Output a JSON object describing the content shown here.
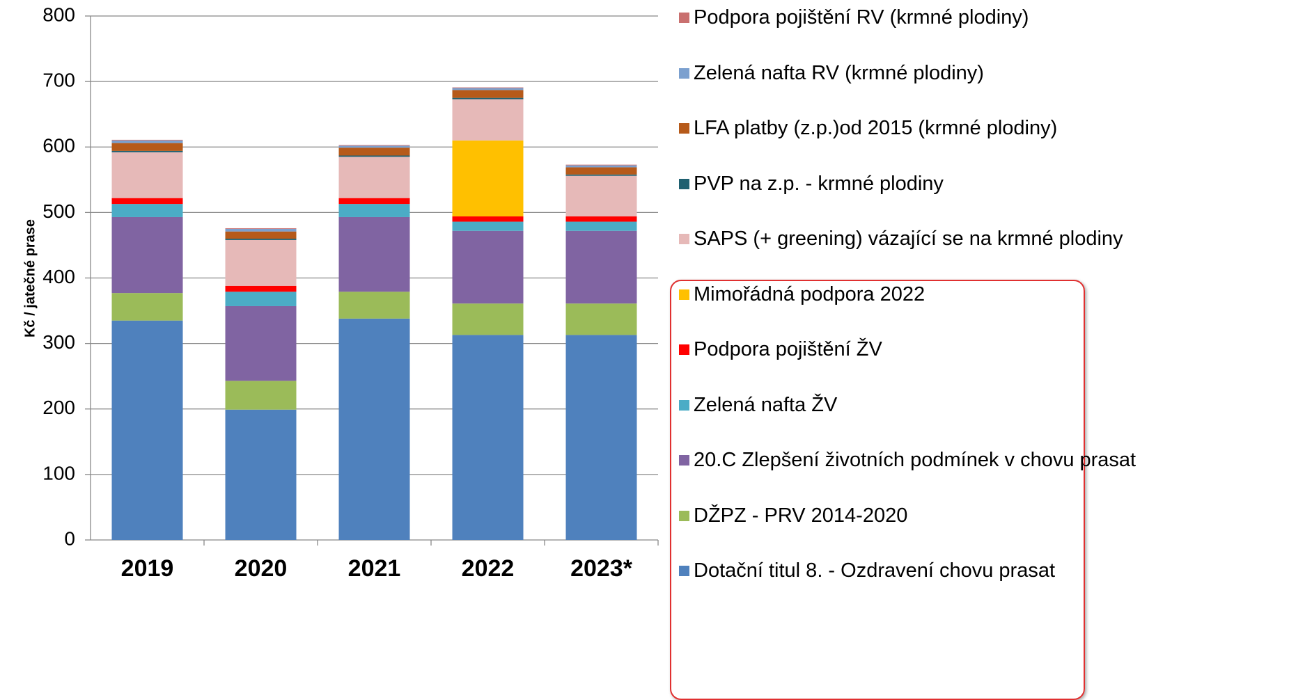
{
  "chart_data": {
    "type": "bar",
    "stacked": true,
    "y_label": "Kč / jatečné prase",
    "categories": [
      "2019",
      "2020",
      "2021",
      "2022",
      "2023*"
    ],
    "ylim": [
      0,
      800
    ],
    "yticks": [
      0,
      100,
      200,
      300,
      400,
      500,
      600,
      700,
      800
    ],
    "grid": true,
    "series": [
      {
        "name": "Dotační titul 8. - Ozdravení chovu prasat",
        "color": "#4f81bd",
        "values": [
          335,
          199,
          338,
          313,
          313
        ]
      },
      {
        "name": "DŽPZ - PRV 2014-2020",
        "color": "#9bbb59",
        "values": [
          42,
          44,
          41,
          48,
          48
        ]
      },
      {
        "name": "20.C Zlepšení životních podmínek v chovu prasat",
        "color": "#8064a2",
        "values": [
          116,
          114,
          114,
          111,
          111
        ]
      },
      {
        "name": "Zelená nafta ŽV",
        "color": "#4bacc6",
        "values": [
          20,
          22,
          20,
          14,
          14
        ]
      },
      {
        "name": "Podpora pojištění ŽV",
        "color": "#ff0000",
        "values": [
          9,
          9,
          9,
          8,
          8
        ]
      },
      {
        "name": "Mimořádná podpora 2022",
        "color": "#ffc000",
        "values": [
          0,
          0,
          0,
          116,
          0
        ]
      },
      {
        "name": "SAPS (+ greening) vázající se na krmné plodiny",
        "color": "#e6b9b8",
        "values": [
          70,
          70,
          63,
          63,
          62
        ]
      },
      {
        "name": "PVP na z.p. - krmné plodiny",
        "color": "#1f6070",
        "values": [
          2,
          2,
          2,
          2,
          2
        ]
      },
      {
        "name": "LFA platby (z.p.)od 2015 (krmné plodiny)",
        "color": "#b65a1a",
        "values": [
          12,
          11,
          12,
          12,
          11
        ]
      },
      {
        "name": "Zelená nafta RV (krmné plodiny)",
        "color": "#7ba0cf",
        "values": [
          4,
          4,
          3,
          3,
          3
        ]
      },
      {
        "name": "Podpora pojištění RV (krmné plodiny)",
        "color": "#c9706f",
        "values": [
          1,
          1,
          1,
          1,
          1
        ]
      }
    ]
  }
}
